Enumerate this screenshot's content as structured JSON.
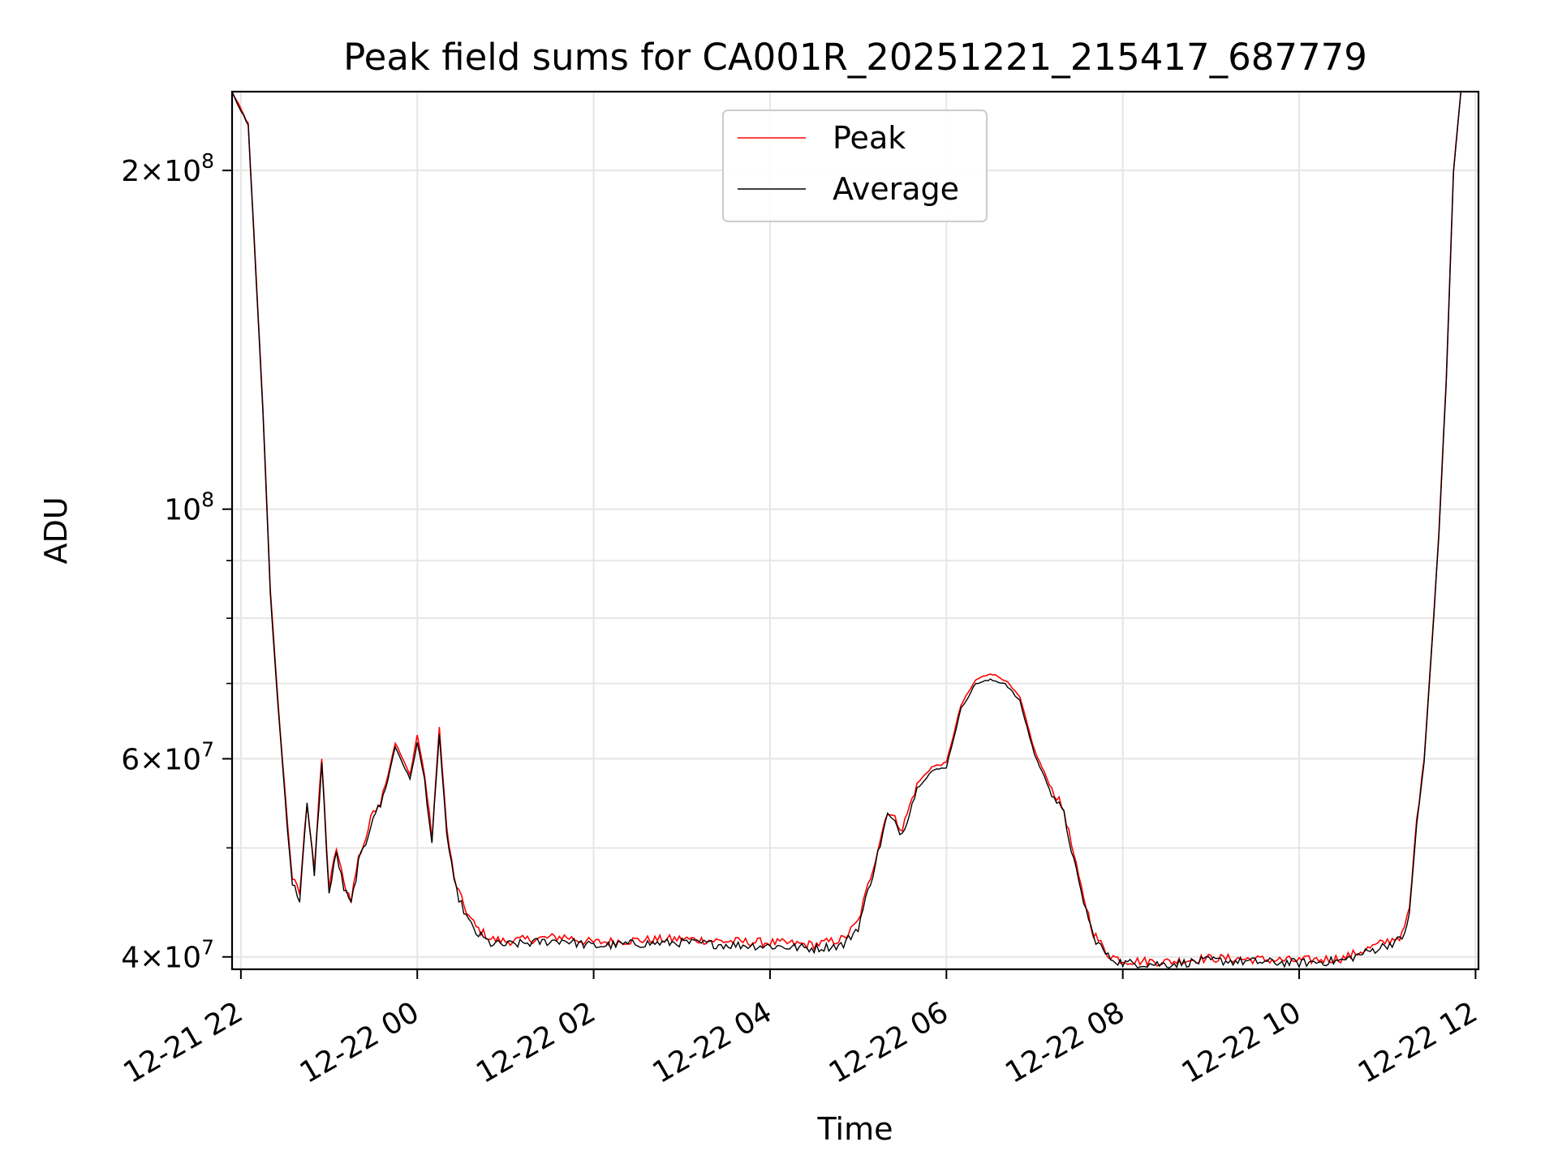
{
  "chart_data": {
    "type": "line",
    "title": "Peak field sums for CA001R_20251221_215417_687779",
    "xlabel": "Time",
    "ylabel": "ADU",
    "yscale": "log",
    "xlim": [
      "2025-12-21 21:54",
      "2025-12-22 12:02"
    ],
    "ylim": [
      39000000,
      235000000
    ],
    "grid": true,
    "legend_position": "top-center",
    "x_ticks": [
      "2025-12-21 22:00",
      "2025-12-22 00:00",
      "2025-12-22 02:00",
      "2025-12-22 04:00",
      "2025-12-22 06:00",
      "2025-12-22 08:00",
      "2025-12-22 10:00",
      "2025-12-22 12:00"
    ],
    "x_tick_labels": [
      "12-21 22",
      "12-22 00",
      "12-22 02",
      "12-22 04",
      "12-22 06",
      "12-22 08",
      "12-22 10",
      "12-22 12"
    ],
    "y_major_ticks": [
      {
        "value": 40000000,
        "mantissa": "4",
        "exponent": "7"
      },
      {
        "value": 60000000,
        "mantissa": "6",
        "exponent": "7"
      },
      {
        "value": 100000000,
        "mantissa": "",
        "exponent": "8"
      },
      {
        "value": 200000000,
        "mantissa": "2",
        "exponent": "8"
      }
    ],
    "y_minor_ticks": [
      50000000,
      70000000,
      80000000,
      90000000
    ],
    "times_bin": "2025-12-21 21:54 onward",
    "series": [
      {
        "name": "Peak",
        "color": "#ff0000",
        "x": [
          "2025-12-21 21:54",
          "2025-12-21 22:05",
          "2025-12-21 22:15",
          "2025-12-21 22:20",
          "2025-12-21 22:25",
          "2025-12-21 22:30",
          "2025-12-21 22:35",
          "2025-12-21 22:40",
          "2025-12-21 22:45",
          "2025-12-21 22:50",
          "2025-12-21 22:55",
          "2025-12-21 23:00",
          "2025-12-21 23:05",
          "2025-12-21 23:10",
          "2025-12-21 23:15",
          "2025-12-21 23:20",
          "2025-12-21 23:25",
          "2025-12-21 23:30",
          "2025-12-21 23:35",
          "2025-12-21 23:40",
          "2025-12-21 23:45",
          "2025-12-21 23:50",
          "2025-12-21 23:55",
          "2025-12-22 00:00",
          "2025-12-22 00:05",
          "2025-12-22 00:10",
          "2025-12-22 00:15",
          "2025-12-22 00:20",
          "2025-12-22 00:25",
          "2025-12-22 00:30",
          "2025-12-22 00:35",
          "2025-12-22 00:40",
          "2025-12-22 00:50",
          "2025-12-22 01:00",
          "2025-12-22 01:20",
          "2025-12-22 01:40",
          "2025-12-22 01:50",
          "2025-12-22 02:00",
          "2025-12-22 02:30",
          "2025-12-22 03:00",
          "2025-12-22 03:30",
          "2025-12-22 04:00",
          "2025-12-22 04:30",
          "2025-12-22 04:50",
          "2025-12-22 05:00",
          "2025-12-22 05:10",
          "2025-12-22 05:20",
          "2025-12-22 05:30",
          "2025-12-22 05:40",
          "2025-12-22 05:50",
          "2025-12-22 06:00",
          "2025-12-22 06:10",
          "2025-12-22 06:20",
          "2025-12-22 06:30",
          "2025-12-22 06:40",
          "2025-12-22 06:50",
          "2025-12-22 07:00",
          "2025-12-22 07:10",
          "2025-12-22 07:20",
          "2025-12-22 07:30",
          "2025-12-22 07:40",
          "2025-12-22 07:50",
          "2025-12-22 08:00",
          "2025-12-22 08:30",
          "2025-12-22 09:00",
          "2025-12-22 09:30",
          "2025-12-22 10:00",
          "2025-12-22 10:30",
          "2025-12-22 11:00",
          "2025-12-22 11:10",
          "2025-12-22 11:15",
          "2025-12-22 11:20",
          "2025-12-22 11:25",
          "2025-12-22 11:30",
          "2025-12-22 11:35",
          "2025-12-22 11:40",
          "2025-12-22 11:45",
          "2025-12-22 11:50"
        ],
        "y": [
          235000000,
          220000000,
          123000000,
          85000000,
          68000000,
          56000000,
          47000000,
          45500000,
          55000000,
          48000000,
          60000000,
          46000000,
          50000000,
          46500000,
          45000000,
          49000000,
          51000000,
          54000000,
          55000000,
          58000000,
          62000000,
          60000000,
          58000000,
          63000000,
          58000000,
          51000000,
          64000000,
          52000000,
          47000000,
          45000000,
          43500000,
          42500000,
          41500000,
          41300000,
          41500000,
          41700000,
          41400000,
          41200000,
          41400000,
          41500000,
          41300000,
          41200000,
          41000000,
          41500000,
          43000000,
          48000000,
          54000000,
          52000000,
          57000000,
          59000000,
          59500000,
          67000000,
          70500000,
          71500000,
          70500000,
          68000000,
          61000000,
          57000000,
          54000000,
          47000000,
          42000000,
          40200000,
          39700000,
          39600000,
          39900000,
          39800000,
          39700000,
          39900000,
          41300000,
          41800000,
          44000000,
          53000000,
          60000000,
          75000000,
          95000000,
          130000000,
          200000000,
          235000000
        ]
      },
      {
        "name": "Average",
        "color": "#000000",
        "x": [
          "2025-12-21 21:54",
          "2025-12-21 22:05",
          "2025-12-21 22:15",
          "2025-12-21 22:20",
          "2025-12-21 22:25",
          "2025-12-21 22:30",
          "2025-12-21 22:35",
          "2025-12-21 22:40",
          "2025-12-21 22:45",
          "2025-12-21 22:50",
          "2025-12-21 22:55",
          "2025-12-21 23:00",
          "2025-12-21 23:05",
          "2025-12-21 23:10",
          "2025-12-21 23:15",
          "2025-12-21 23:20",
          "2025-12-21 23:25",
          "2025-12-21 23:30",
          "2025-12-21 23:35",
          "2025-12-21 23:40",
          "2025-12-21 23:45",
          "2025-12-21 23:50",
          "2025-12-21 23:55",
          "2025-12-22 00:00",
          "2025-12-22 00:05",
          "2025-12-22 00:10",
          "2025-12-22 00:15",
          "2025-12-22 00:20",
          "2025-12-22 00:25",
          "2025-12-22 00:30",
          "2025-12-22 00:35",
          "2025-12-22 00:40",
          "2025-12-22 00:50",
          "2025-12-22 01:00",
          "2025-12-22 01:20",
          "2025-12-22 01:40",
          "2025-12-22 01:50",
          "2025-12-22 02:00",
          "2025-12-22 02:30",
          "2025-12-22 03:00",
          "2025-12-22 03:30",
          "2025-12-22 04:00",
          "2025-12-22 04:30",
          "2025-12-22 04:50",
          "2025-12-22 05:00",
          "2025-12-22 05:10",
          "2025-12-22 05:20",
          "2025-12-22 05:30",
          "2025-12-22 05:40",
          "2025-12-22 05:50",
          "2025-12-22 06:00",
          "2025-12-22 06:10",
          "2025-12-22 06:20",
          "2025-12-22 06:30",
          "2025-12-22 06:40",
          "2025-12-22 06:50",
          "2025-12-22 07:00",
          "2025-12-22 07:10",
          "2025-12-22 07:20",
          "2025-12-22 07:30",
          "2025-12-22 07:40",
          "2025-12-22 07:50",
          "2025-12-22 08:00",
          "2025-12-22 08:30",
          "2025-12-22 09:00",
          "2025-12-22 09:30",
          "2025-12-22 10:00",
          "2025-12-22 10:30",
          "2025-12-22 11:00",
          "2025-12-22 11:10",
          "2025-12-22 11:15",
          "2025-12-22 11:20",
          "2025-12-22 11:25",
          "2025-12-22 11:30",
          "2025-12-22 11:35",
          "2025-12-22 11:40",
          "2025-12-22 11:45",
          "2025-12-22 11:50"
        ],
        "y": [
          235000000,
          219000000,
          122000000,
          84000000,
          67500000,
          55500000,
          46500000,
          45000000,
          54500000,
          47500000,
          59500000,
          45500000,
          49500000,
          46000000,
          44500000,
          48500000,
          50500000,
          53500000,
          54500000,
          57500000,
          61500000,
          59500000,
          57500000,
          62000000,
          57500000,
          50500000,
          63000000,
          51500000,
          46500000,
          44500000,
          43000000,
          42000000,
          41100000,
          41000000,
          41200000,
          41400000,
          41100000,
          40900000,
          41100000,
          41200000,
          41000000,
          40900000,
          40700000,
          41000000,
          42500000,
          47500000,
          53500000,
          51500000,
          56500000,
          58500000,
          59000000,
          66500000,
          70000000,
          70500000,
          70000000,
          67500000,
          60500000,
          56500000,
          53500000,
          46500000,
          41700000,
          40000000,
          39500000,
          39400000,
          39700000,
          39600000,
          39500000,
          39700000,
          41000000,
          41500000,
          43500000,
          52500000,
          59500000,
          74500000,
          94500000,
          129000000,
          199000000,
          235000000
        ]
      }
    ]
  }
}
